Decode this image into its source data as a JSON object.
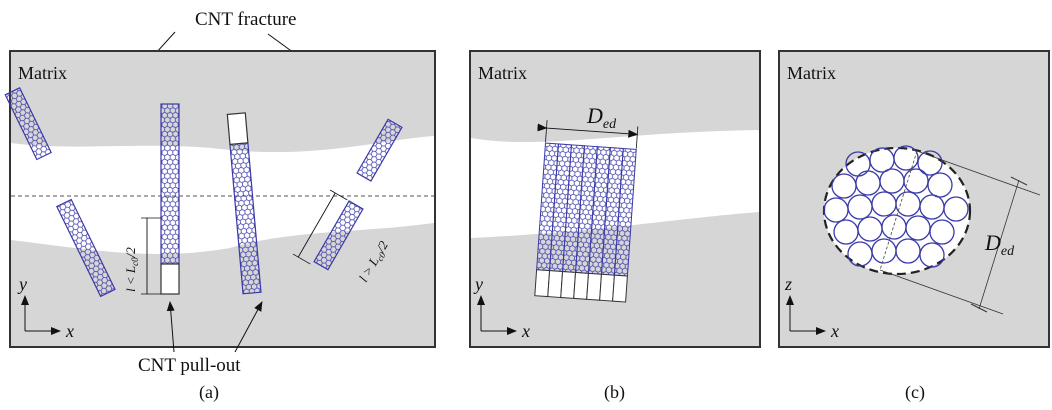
{
  "colors": {
    "matrix_fill": "#d6d6d6",
    "crack_fill": "#ffffff",
    "frame_stroke": "#333333",
    "cnt_stroke": "#3a3aa8",
    "text": "#111111"
  },
  "labels": {
    "cnt_fracture": "CNT fracture",
    "cnt_pullout": "CNT pull-out",
    "matrix_a": "Matrix",
    "matrix_b": "Matrix",
    "matrix_c": "Matrix",
    "panel_a": "(a)",
    "panel_b": "(b)",
    "panel_c": "(c)",
    "len_less": "l < L",
    "len_less_sub": "c0",
    "len_less_tail": "/2",
    "len_greater": "l > L",
    "len_greater_sub": "c0",
    "len_greater_tail": "/2",
    "d_main_b": "D",
    "d_sub_b": "ed",
    "d_main_c": "D",
    "d_sub_c": "ed",
    "axis_y_a": "y",
    "axis_x_a": "x",
    "axis_y_b": "y",
    "axis_x_b": "x",
    "axis_z_c": "z",
    "axis_x_c": "x"
  },
  "icons": {
    "cnt": "carbon-nanotube-hexagonal-lattice",
    "arrow": "pointer-arrow"
  }
}
